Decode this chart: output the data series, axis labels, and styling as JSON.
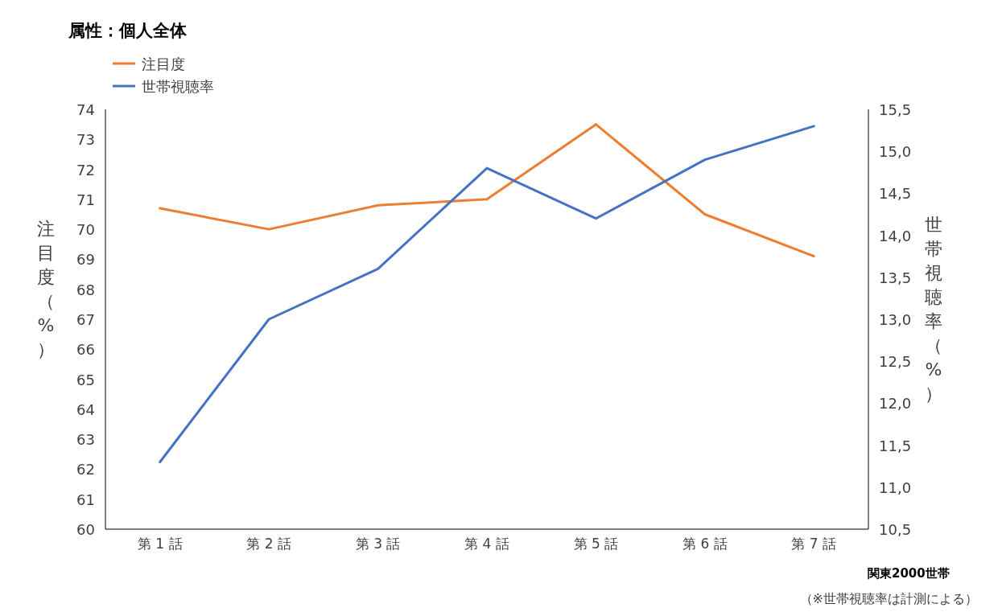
{
  "chart_data": {
    "type": "line",
    "title": "属性：個人全体",
    "categories": [
      "第 1 話",
      "第 2 話",
      "第 3 話",
      "第 4 話",
      "第 5 話",
      "第 6 話",
      "第 7 話"
    ],
    "series": [
      {
        "name": "注目度",
        "color": "#ed7d31",
        "values": [
          70.7,
          70.0,
          70.8,
          71.0,
          73.5,
          70.5,
          69.1
        ]
      },
      {
        "name": "世帯視聴率",
        "color": "#4472c4",
        "axis": "y2",
        "values": [
          11.3,
          13.0,
          13.6,
          14.8,
          14.2,
          14.9,
          15.3
        ]
      }
    ],
    "ylabel": "注目度（%）",
    "y2label": "世帯視聴率（%）",
    "ylim": [
      60,
      74
    ],
    "yticks": [
      60,
      61,
      62,
      63,
      64,
      65,
      66,
      67,
      68,
      69,
      70,
      71,
      72,
      73,
      74
    ],
    "y2lim": [
      10.5,
      15.5
    ],
    "y2ticks": [
      {
        "value": 10.5,
        "label": "10,5"
      },
      {
        "value": 11,
        "label": "11,0"
      },
      {
        "value": 11.5,
        "label": "11,5"
      },
      {
        "value": 12,
        "label": "12,0"
      },
      {
        "value": 12.5,
        "label": "12,5"
      },
      {
        "value": 13,
        "label": "13,0"
      },
      {
        "value": 13.5,
        "label": "13,5"
      },
      {
        "value": 14,
        "label": "14,0"
      },
      {
        "value": 14.5,
        "label": "14,5"
      },
      {
        "value": 15,
        "label": "15,0"
      },
      {
        "value": 15.5,
        "label": "15,5"
      }
    ],
    "annotations": [
      "関東2000世帯",
      "（※世帯視聴率は計測による）"
    ],
    "legend": "top left",
    "grid": false,
    "marker": "none",
    "line_style": "solid"
  }
}
